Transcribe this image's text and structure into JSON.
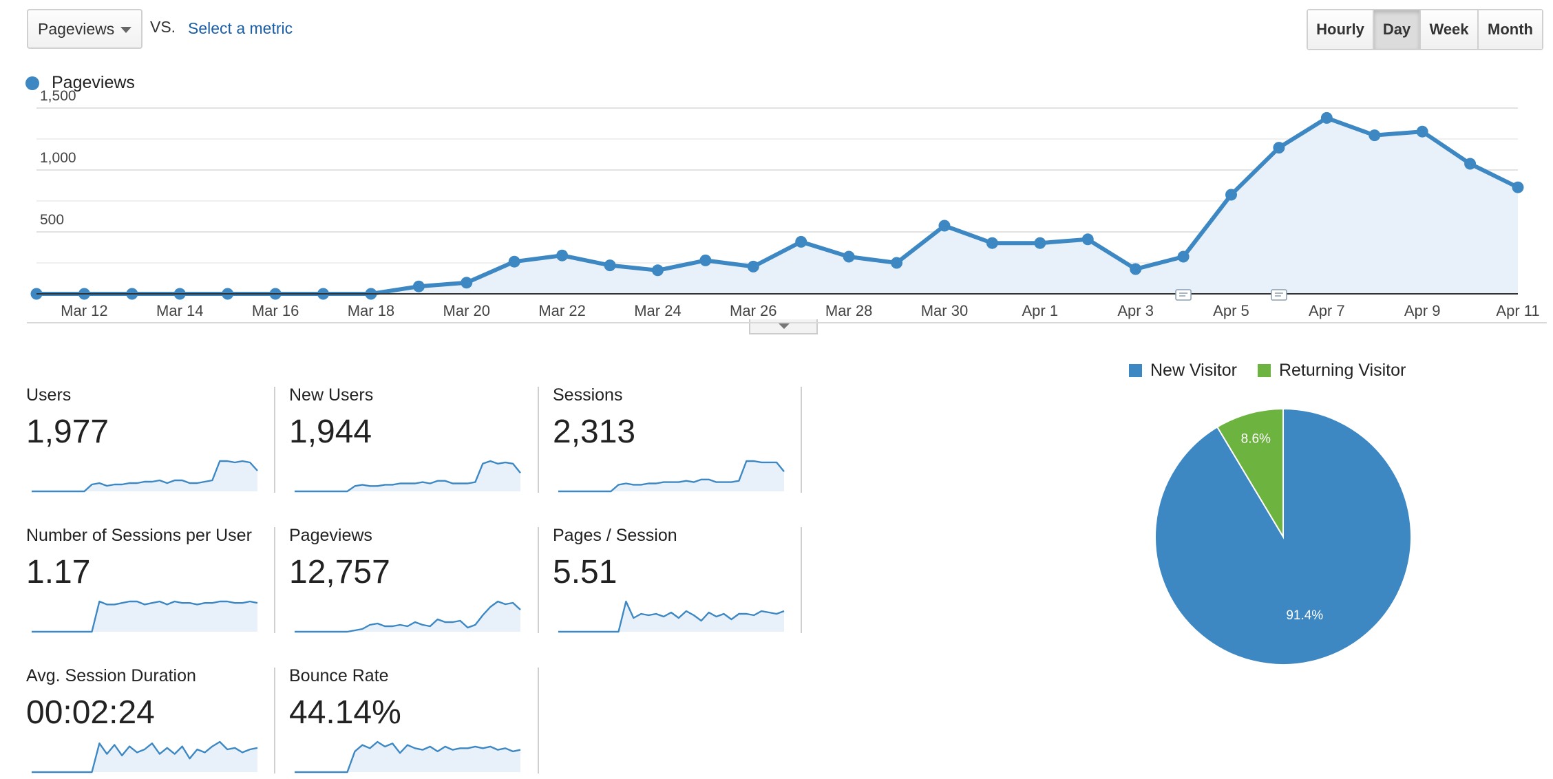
{
  "controls": {
    "metric_select": "Pageviews",
    "vs": "VS.",
    "select_metric": "Select a metric",
    "periods": [
      "Hourly",
      "Day",
      "Week",
      "Month"
    ],
    "active_period": "Day"
  },
  "chart_data": [
    {
      "type": "area",
      "series": [
        {
          "name": "Pageviews",
          "color": "#3d88c3",
          "values": [
            0,
            0,
            0,
            0,
            0,
            0,
            0,
            0,
            60,
            90,
            260,
            310,
            230,
            190,
            270,
            220,
            420,
            300,
            250,
            550,
            410,
            410,
            440,
            200,
            300,
            800,
            1180,
            1420,
            1280,
            1310,
            1050,
            860
          ]
        }
      ],
      "x": [
        "Mar 11",
        "Mar 12",
        "Mar 13",
        "Mar 14",
        "Mar 15",
        "Mar 16",
        "Mar 17",
        "Mar 18",
        "Mar 19",
        "Mar 20",
        "Mar 21",
        "Mar 22",
        "Mar 23",
        "Mar 24",
        "Mar 25",
        "Mar 26",
        "Mar 27",
        "Mar 28",
        "Mar 29",
        "Mar 30",
        "Mar 31",
        "Apr 1",
        "Apr 2",
        "Apr 3",
        "Apr 4",
        "Apr 5",
        "Apr 6",
        "Apr 7",
        "Apr 8",
        "Apr 9",
        "Apr 10",
        "Apr 11"
      ],
      "x_tick_labels": [
        "Mar 12",
        "Mar 14",
        "Mar 16",
        "Mar 18",
        "Mar 20",
        "Mar 22",
        "Mar 24",
        "Mar 26",
        "Mar 28",
        "Mar 30",
        "Apr 1",
        "Apr 3",
        "Apr 5",
        "Apr 7",
        "Apr 9",
        "Apr 11"
      ],
      "y_ticks": [
        "500",
        "1,000",
        "1,500"
      ],
      "ylim": [
        0,
        1500
      ],
      "annotation_markers_on": [
        "Apr 4",
        "Apr 6"
      ],
      "legend_placement": "top-left"
    },
    {
      "type": "pie",
      "categories": [
        "New Visitor",
        "Returning Visitor"
      ],
      "values": [
        91.4,
        8.6
      ],
      "labels": [
        "91.4%",
        "8.6%"
      ],
      "colors": [
        "#3d88c3",
        "#6db33f"
      ],
      "legend_placement": "top"
    }
  ],
  "metrics": [
    {
      "label": "Users",
      "value": "1,977",
      "spark": [
        0,
        0,
        0,
        0,
        0,
        0,
        0,
        0,
        5,
        6,
        4,
        5,
        5,
        6,
        6,
        7,
        7,
        8,
        6,
        8,
        8,
        6,
        6,
        7,
        8,
        22,
        22,
        21,
        22,
        21,
        15
      ]
    },
    {
      "label": "New Users",
      "value": "1,944",
      "spark": [
        0,
        0,
        0,
        0,
        0,
        0,
        0,
        0,
        4,
        5,
        4,
        4,
        5,
        5,
        6,
        6,
        6,
        7,
        6,
        8,
        8,
        6,
        6,
        6,
        7,
        21,
        23,
        21,
        22,
        21,
        14
      ]
    },
    {
      "label": "Sessions",
      "value": "2,313",
      "spark": [
        0,
        0,
        0,
        0,
        0,
        0,
        0,
        0,
        5,
        6,
        5,
        5,
        6,
        6,
        7,
        7,
        7,
        8,
        7,
        9,
        9,
        7,
        7,
        7,
        8,
        23,
        23,
        22,
        22,
        22,
        15
      ]
    },
    {
      "label": "Number of Sessions per User",
      "value": "1.17",
      "spark": [
        0,
        0,
        0,
        0,
        0,
        0,
        0,
        0,
        0,
        10,
        9,
        9,
        9.5,
        10,
        10,
        9,
        9.5,
        10,
        9,
        10,
        9.5,
        9.5,
        9,
        9.5,
        9.5,
        10,
        10,
        9.5,
        9.5,
        10,
        9.5
      ]
    },
    {
      "label": "Pageviews",
      "value": "12,757",
      "spark": [
        0,
        0,
        0,
        0,
        0,
        0,
        0,
        0,
        1,
        2,
        5,
        6,
        4,
        4,
        5,
        4,
        7,
        5,
        4,
        9,
        7,
        7,
        8,
        3,
        5,
        12,
        18,
        22,
        20,
        21,
        16
      ]
    },
    {
      "label": "Pages / Session",
      "value": "5.51",
      "spark": [
        0,
        0,
        0,
        0,
        0,
        0,
        0,
        0,
        0,
        22,
        10,
        13,
        12,
        13,
        11,
        14,
        10,
        15,
        12,
        8,
        14,
        11,
        13,
        9,
        13,
        13,
        12,
        15,
        14,
        13,
        15
      ]
    },
    {
      "label": "Avg. Session Duration",
      "value": "00:02:24",
      "spark": [
        0,
        0,
        0,
        0,
        0,
        0,
        0,
        0,
        0,
        19,
        12,
        18,
        11,
        17,
        13,
        15,
        19,
        12,
        16,
        12,
        17,
        9,
        15,
        13,
        17,
        20,
        15,
        16,
        13,
        15,
        16
      ]
    },
    {
      "label": "Bounce Rate",
      "value": "44.14%",
      "spark": [
        0,
        0,
        0,
        0,
        0,
        0,
        0,
        0,
        13,
        17,
        15,
        19,
        16,
        18,
        12,
        17,
        15,
        14,
        16,
        13,
        16,
        14,
        15,
        15,
        16,
        15,
        16,
        14,
        15,
        13,
        14
      ]
    }
  ]
}
